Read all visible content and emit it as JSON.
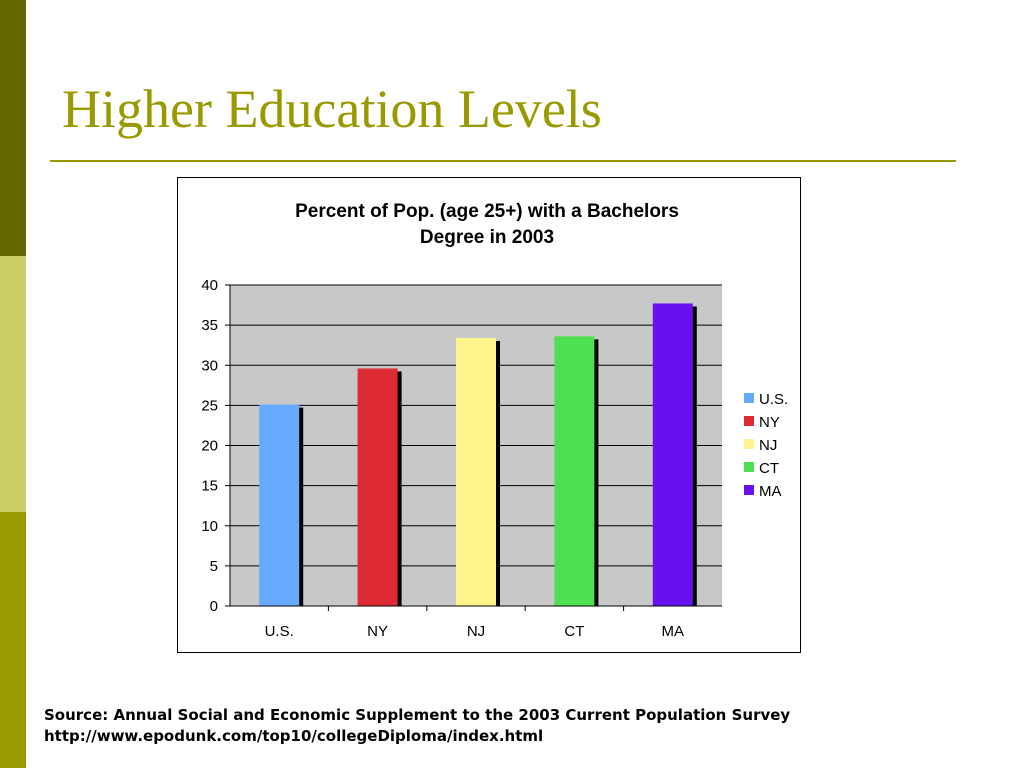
{
  "slide": {
    "title": "Higher Education Levels",
    "source_line1": "Source: Annual Social and Economic Supplement to the 2003 Current Population Survey",
    "source_line2": "http://www.epodunk.com/top10/collegeDiploma/index.html",
    "colors": {
      "title": "#999900",
      "sidebar_top": "#666600",
      "sidebar_mid": "#cccc66",
      "sidebar_bottom": "#999900"
    }
  },
  "chart_data": {
    "type": "bar",
    "title_lines": [
      "Percent of Pop. (age 25+) with a Bachelors",
      "Degree in 2003"
    ],
    "xlabel": "",
    "ylabel": "",
    "categories": [
      "U.S.",
      "NY",
      "NJ",
      "CT",
      "MA"
    ],
    "values": [
      25.1,
      29.6,
      33.4,
      33.6,
      37.7
    ],
    "colors": [
      "#66aaff",
      "#dd2a33",
      "#fff48c",
      "#4de051",
      "#6611ee"
    ],
    "ylim": [
      0,
      40
    ],
    "yticks": [
      0,
      5,
      10,
      15,
      20,
      25,
      30,
      35,
      40
    ],
    "grid": true,
    "plot_background": "#c8c8c8",
    "legend": {
      "position": "right",
      "entries": [
        "U.S.",
        "NY",
        "NJ",
        "CT",
        "MA"
      ]
    }
  }
}
